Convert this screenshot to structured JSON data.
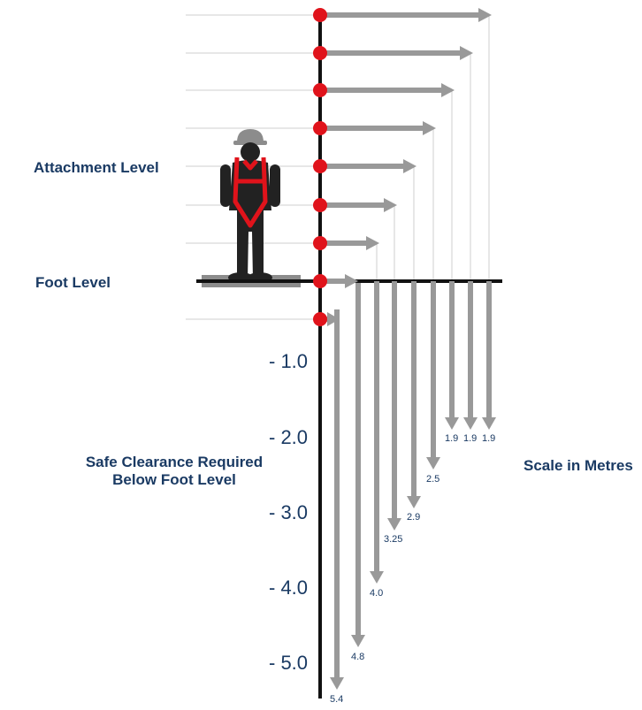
{
  "labels": {
    "attachment_level": "Attachment Level",
    "foot_level": "Foot Level",
    "safe_clearance_line1": "Safe Clearance Required",
    "safe_clearance_line2": "Below Foot Level",
    "scale_title": "Scale in Metres"
  },
  "scale_ticks": [
    "- 1.0",
    "- 2.0",
    "- 3.0",
    "- 4.0",
    "- 5.0"
  ],
  "clearances": [
    "1.9",
    "1.9",
    "1.9",
    "2.5",
    "2.9",
    "3.25",
    "4.0",
    "4.8",
    "5.4"
  ],
  "colors": {
    "arrow": "#999999",
    "dot": "#e0131b",
    "axis": "#111111",
    "text": "#1a3a63",
    "harness": "#e0131b",
    "worker": "#222222",
    "helmet": "#8c8c8c"
  }
}
